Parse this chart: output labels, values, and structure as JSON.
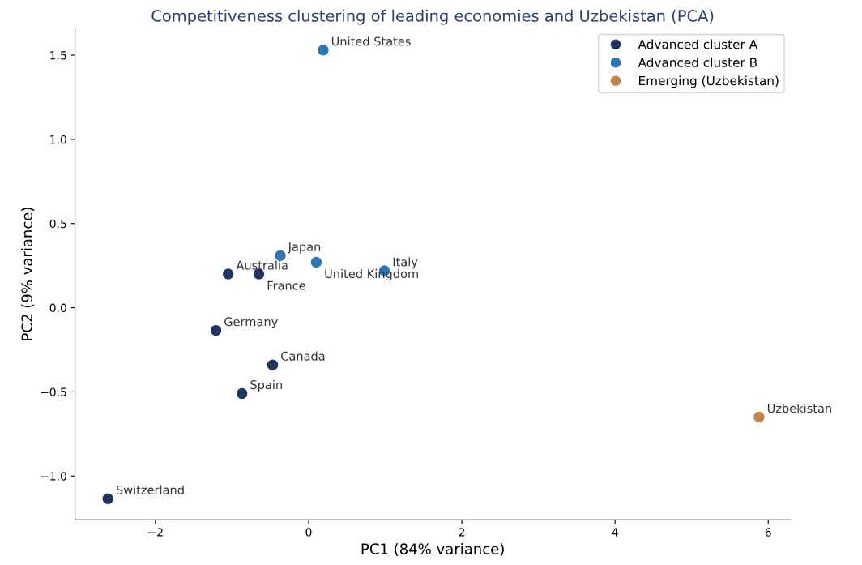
{
  "chart_data": {
    "type": "scatter",
    "title": "Competitiveness clustering of leading economies and Uzbekistan (PCA)",
    "xlabel": "PC1 (84% variance)",
    "ylabel": "PC2 (9% variance)",
    "xlim": [
      -3.05,
      6.29
    ],
    "ylim": [
      -1.26,
      1.66
    ],
    "xticks": [
      {
        "value": -2,
        "label": "−2"
      },
      0,
      2,
      4,
      6
    ],
    "yticks": [
      {
        "value": -1.0,
        "label": "−1.0"
      },
      {
        "value": -0.5,
        "label": "−0.5"
      },
      {
        "value": 0.0,
        "label": "0.0"
      },
      {
        "value": 0.5,
        "label": "0.5"
      },
      {
        "value": 1.0,
        "label": "1.0"
      },
      {
        "value": 1.5,
        "label": "1.5"
      }
    ],
    "grid": false,
    "legend": "top right",
    "marker": "circle",
    "series": [
      {
        "name": "Advanced cluster A",
        "color": "#1f355e",
        "x": [
          -1.05,
          -0.65,
          -1.21,
          -0.47,
          -0.87,
          -2.62
        ],
        "values": [
          0.2,
          0.2,
          -0.135,
          -0.34,
          -0.51,
          -1.135
        ]
      },
      {
        "name": "Advanced cluster B",
        "color": "#2e75b6",
        "x": [
          0.19,
          -0.37,
          0.1,
          0.99
        ],
        "values": [
          1.53,
          0.31,
          0.27,
          0.22
        ]
      },
      {
        "name": "Emerging (Uzbekistan)",
        "color": "#c0854a",
        "x": [
          5.88
        ],
        "values": [
          -0.65
        ]
      }
    ],
    "annotations": [
      {
        "text": "United States",
        "x": 0.19,
        "y": 1.53
      },
      {
        "text": "Japan",
        "x": -0.37,
        "y": 0.31
      },
      {
        "text": "United Kingdom",
        "x": 0.1,
        "y": 0.27
      },
      {
        "text": "Italy",
        "x": 0.99,
        "y": 0.22
      },
      {
        "text": "Australia",
        "x": -1.05,
        "y": 0.2
      },
      {
        "text": "France",
        "x": -0.65,
        "y": 0.2
      },
      {
        "text": "Germany",
        "x": -1.21,
        "y": -0.135
      },
      {
        "text": "Canada",
        "x": -0.47,
        "y": -0.34
      },
      {
        "text": "Spain",
        "x": -0.87,
        "y": -0.51
      },
      {
        "text": "Switzerland",
        "x": -2.62,
        "y": -1.135
      },
      {
        "text": "Uzbekistan",
        "x": 5.88,
        "y": -0.65
      }
    ]
  }
}
